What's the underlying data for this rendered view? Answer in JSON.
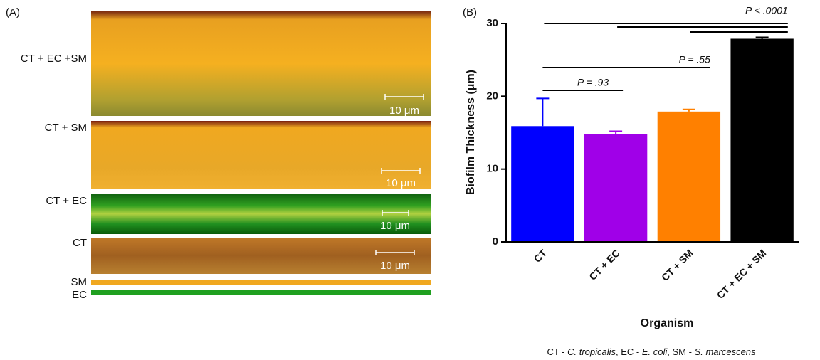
{
  "panel_a": {
    "label": "(A)",
    "rows": [
      "CT + EC +SM",
      "CT + SM",
      "CT + EC",
      "CT",
      "SM",
      "EC"
    ],
    "scale_bars": [
      "10 μm",
      "10 μm",
      "10 μm",
      "10 μm"
    ]
  },
  "chart_data": {
    "type": "bar",
    "panel_label": "(B)",
    "x_label": "Organism",
    "y_label": "Biofilm Thickness (μm)",
    "categories": [
      "CT",
      "CT + EC",
      "CT + SM",
      "CT + EC + SM"
    ],
    "values": [
      15.9,
      14.8,
      17.9,
      27.9
    ],
    "errors": [
      3.8,
      0.4,
      0.3,
      0.2
    ],
    "colors": [
      "#0000ff",
      "#a000e8",
      "#ff8000",
      "#000000"
    ],
    "ylim": [
      0,
      30
    ],
    "yticks": [
      0,
      10,
      20,
      30
    ],
    "annotations": [
      "P = .93",
      "P = .55",
      "P < .0001"
    ]
  },
  "footnote": [
    "CT - ",
    "C. tropicalis",
    ", EC - ",
    "E. coli",
    ", SM - ",
    "S. marcescens"
  ]
}
